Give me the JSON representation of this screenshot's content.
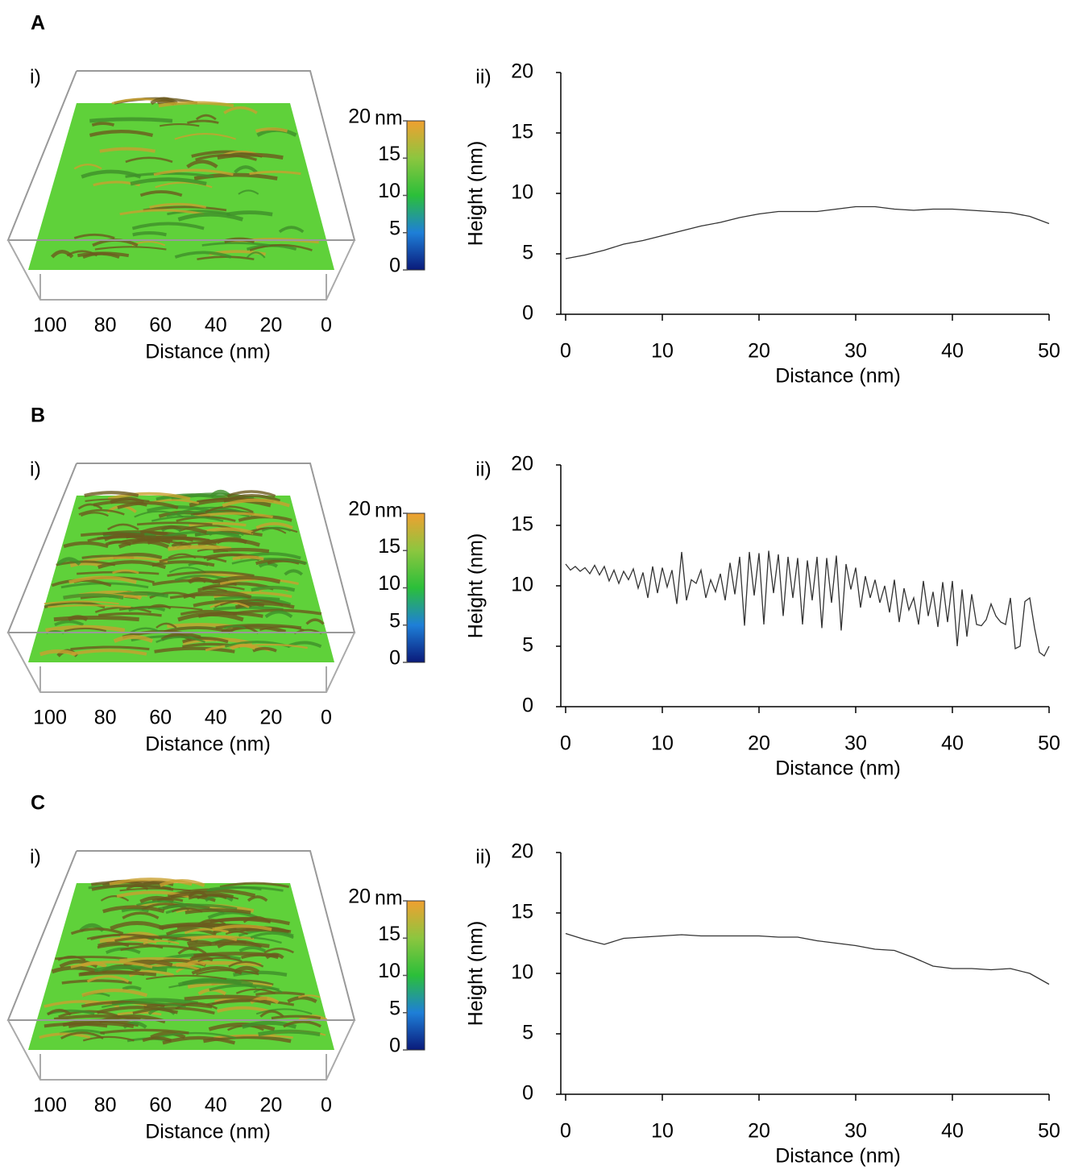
{
  "chart_data": [
    {
      "type": "surface",
      "panel": "A",
      "label": "i)",
      "xlabel": "Distance (nm)",
      "xlim": [
        100,
        0
      ],
      "xticks": [
        100,
        80,
        60,
        40,
        20,
        0
      ],
      "colorbar": {
        "lim": [
          0,
          20
        ],
        "ticks": [
          0,
          5,
          10,
          15,
          20
        ],
        "unit": "nm",
        "colors": [
          "#0a1a7a",
          "#1e7fd8",
          "#2bbf3a",
          "#8cc63f",
          "#f0a030"
        ]
      }
    },
    {
      "type": "line",
      "label": "ii)",
      "xlabel": "Distance (nm)",
      "ylabel": "Height (nm)",
      "color": "#333333",
      "x": [
        0,
        2,
        4,
        6,
        8,
        10,
        12,
        14,
        16,
        18,
        20,
        22,
        24,
        26,
        28,
        30,
        32,
        34,
        36,
        38,
        40,
        42,
        44,
        46,
        48,
        50
      ],
      "values": [
        4.6,
        4.9,
        5.3,
        5.8,
        6.1,
        6.5,
        6.9,
        7.3,
        7.6,
        8.0,
        8.3,
        8.5,
        8.5,
        8.5,
        8.7,
        8.9,
        8.9,
        8.7,
        8.6,
        8.7,
        8.7,
        8.6,
        8.5,
        8.4,
        8.1,
        7.5
      ],
      "xlim": [
        0,
        50
      ],
      "ylim": [
        0,
        20
      ],
      "xticks": [
        0,
        10,
        20,
        30,
        40,
        50
      ],
      "yticks": [
        0,
        5,
        10,
        15,
        20
      ]
    },
    {
      "type": "surface",
      "panel": "B",
      "label": "i)",
      "xlabel": "Distance (nm)",
      "xlim": [
        100,
        0
      ],
      "xticks": [
        100,
        80,
        60,
        40,
        20,
        0
      ],
      "colorbar": {
        "lim": [
          0,
          20
        ],
        "ticks": [
          0,
          5,
          10,
          15,
          20
        ],
        "unit": "nm",
        "colors": [
          "#0a1a7a",
          "#1e7fd8",
          "#2bbf3a",
          "#8cc63f",
          "#f0a030"
        ]
      }
    },
    {
      "type": "line",
      "label": "ii)",
      "xlabel": "Distance (nm)",
      "ylabel": "Height (nm)",
      "color": "#333333",
      "x": [
        0,
        0.5,
        1,
        1.5,
        2,
        2.5,
        3,
        3.5,
        4,
        4.5,
        5,
        5.5,
        6,
        6.5,
        7,
        7.5,
        8,
        8.5,
        9,
        9.5,
        10,
        10.5,
        11,
        11.5,
        12,
        12.5,
        13,
        13.5,
        14,
        14.5,
        15,
        15.5,
        16,
        16.5,
        17,
        17.5,
        18,
        18.5,
        19,
        19.5,
        20,
        20.5,
        21,
        21.5,
        22,
        22.5,
        23,
        23.5,
        24,
        24.5,
        25,
        25.5,
        26,
        26.5,
        27,
        27.5,
        28,
        28.5,
        29,
        29.5,
        30,
        30.5,
        31,
        31.5,
        32,
        32.5,
        33,
        33.5,
        34,
        34.5,
        35,
        35.5,
        36,
        36.5,
        37,
        37.5,
        38,
        38.5,
        39,
        39.5,
        40,
        40.5,
        41,
        41.5,
        42,
        42.5,
        43,
        43.5,
        44,
        44.5,
        45,
        45.5,
        46,
        46.5,
        47,
        47.5,
        48,
        48.5,
        49,
        49.5,
        50
      ],
      "values": [
        11.8,
        11.3,
        11.6,
        11.2,
        11.5,
        11.0,
        11.7,
        10.9,
        11.6,
        10.4,
        11.3,
        10.2,
        11.2,
        10.5,
        11.4,
        9.8,
        11.1,
        9.0,
        11.6,
        9.4,
        11.5,
        9.9,
        11.3,
        8.5,
        12.8,
        8.8,
        10.5,
        10.2,
        11.3,
        9.0,
        10.5,
        9.5,
        11.0,
        8.8,
        11.9,
        9.3,
        12.4,
        6.7,
        12.8,
        9.2,
        12.7,
        6.8,
        12.9,
        9.4,
        12.6,
        7.5,
        12.4,
        9.0,
        12.3,
        6.8,
        12.1,
        8.8,
        12.4,
        6.5,
        12.3,
        8.6,
        12.5,
        6.3,
        11.8,
        9.7,
        11.5,
        8.2,
        10.8,
        9.0,
        10.5,
        8.6,
        10.0,
        7.8,
        10.5,
        7.0,
        9.8,
        8.0,
        9.0,
        6.8,
        10.4,
        7.5,
        9.5,
        6.6,
        10.3,
        7.0,
        10.4,
        5.0,
        9.7,
        5.8,
        9.3,
        6.8,
        6.7,
        7.2,
        8.5,
        7.5,
        7.0,
        6.8,
        9.0,
        4.8,
        5.0,
        8.7,
        9.0,
        6.5,
        4.5,
        4.2,
        5.0
      ],
      "xlim": [
        0,
        50
      ],
      "ylim": [
        0,
        20
      ],
      "xticks": [
        0,
        10,
        20,
        30,
        40,
        50
      ],
      "yticks": [
        0,
        5,
        10,
        15,
        20
      ]
    },
    {
      "type": "surface",
      "panel": "C",
      "label": "i)",
      "xlabel": "Distance (nm)",
      "xlim": [
        100,
        0
      ],
      "xticks": [
        100,
        80,
        60,
        40,
        20,
        0
      ],
      "colorbar": {
        "lim": [
          0,
          20
        ],
        "ticks": [
          0,
          5,
          10,
          15,
          20
        ],
        "unit": "nm",
        "colors": [
          "#0a1a7a",
          "#1e7fd8",
          "#2bbf3a",
          "#8cc63f",
          "#f0a030"
        ]
      }
    },
    {
      "type": "line",
      "label": "ii)",
      "xlabel": "Distance (nm)",
      "ylabel": "Height (nm)",
      "color": "#333333",
      "x": [
        0,
        2,
        4,
        6,
        8,
        10,
        12,
        14,
        16,
        18,
        20,
        22,
        24,
        26,
        28,
        30,
        32,
        34,
        36,
        38,
        40,
        42,
        44,
        46,
        48,
        50
      ],
      "values": [
        13.3,
        12.8,
        12.4,
        12.9,
        13.0,
        13.1,
        13.2,
        13.1,
        13.1,
        13.1,
        13.1,
        13.0,
        13.0,
        12.7,
        12.5,
        12.3,
        12.0,
        11.9,
        11.3,
        10.6,
        10.4,
        10.4,
        10.3,
        10.4,
        10.0,
        9.1
      ],
      "xlim": [
        0,
        50
      ],
      "ylim": [
        0,
        20
      ],
      "xticks": [
        0,
        10,
        20,
        30,
        40,
        50
      ],
      "yticks": [
        0,
        5,
        10,
        15,
        20
      ]
    }
  ]
}
